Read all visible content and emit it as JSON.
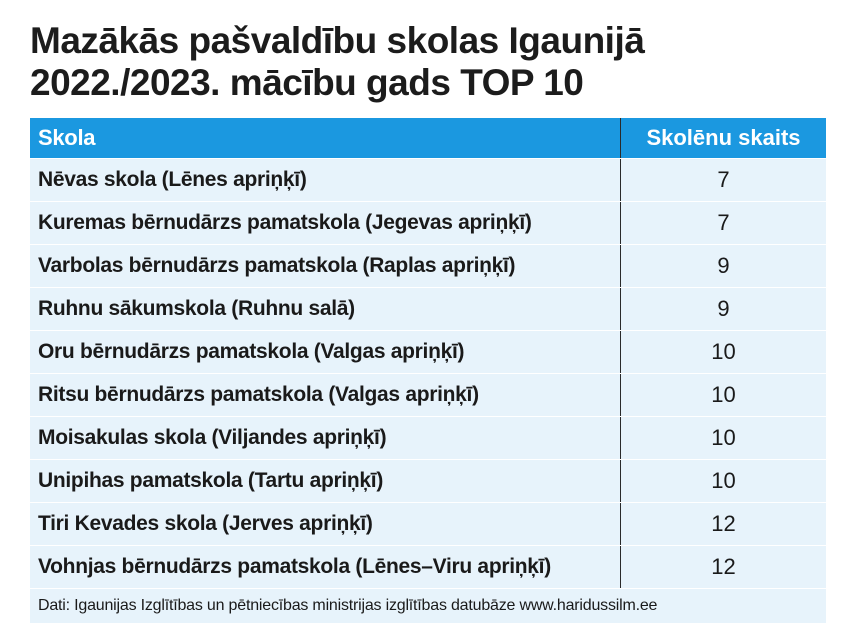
{
  "title": {
    "line1": "Mazākās pašvaldību skolas Igaunijā",
    "line2": "2022./2023. mācību gads TOP 10"
  },
  "table": {
    "headers": {
      "school": "Skola",
      "count": "Skolēnu skaits"
    },
    "rows": [
      {
        "school": "Nēvas skola (Lēnes apriņķī)",
        "count": "7"
      },
      {
        "school": "Kuremas bērnudārzs pamatskola (Jegevas apriņķī)",
        "count": "7"
      },
      {
        "school": "Varbolas bērnudārzs pamatskola (Raplas apriņķī)",
        "count": "9"
      },
      {
        "school": "Ruhnu sākumskola (Ruhnu salā)",
        "count": "9"
      },
      {
        "school": "Oru bērnudārzs pamatskola (Valgas apriņķī)",
        "count": "10"
      },
      {
        "school": "Ritsu bērnudārzs pamatskola (Valgas apriņķī)",
        "count": "10"
      },
      {
        "school": "Moisakulas skola (Viljandes apriņķī)",
        "count": "10"
      },
      {
        "school": "Unipihas pamatskola (Tartu apriņķī)",
        "count": "10"
      },
      {
        "school": "Tiri Kevades skola (Jerves apriņķī)",
        "count": "12"
      },
      {
        "school": "Vohnjas bērnudārzs pamatskola (Lēnes–Viru apriņķī)",
        "count": "12"
      }
    ]
  },
  "source": "Dati: Igaunijas Izglītības un pētniecības ministrijas izglītības datubāze www.haridussilm.ee",
  "colors": {
    "header_bg": "#1b98e0",
    "row_bg": "#e7f3fb"
  }
}
